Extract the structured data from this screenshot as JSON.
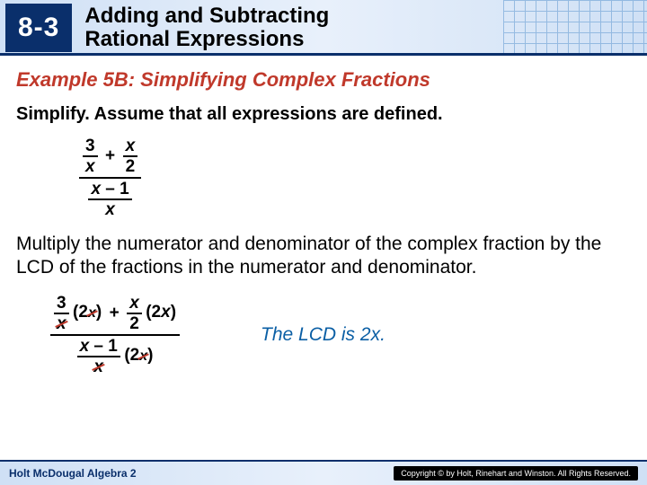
{
  "header": {
    "chapter": "8-3",
    "title_l1": "Adding and Subtracting",
    "title_l2": "Rational Expressions"
  },
  "example": {
    "title": "Example 5B: Simplifying Complex Fractions",
    "prompt": "Simplify. Assume that all expressions are defined."
  },
  "fractions": {
    "f1_num": "3",
    "f1_den": "x",
    "plus": "+",
    "f2_num": "x",
    "f2_den": "2",
    "bot_left": "x",
    "minus": "–",
    "bot_right": "1",
    "bot_den": "x"
  },
  "explain": "Multiply the numerator and denominator of the complex fraction by the LCD of the fractions in the numerator and denominator.",
  "work": {
    "mult_a": "(2",
    "mult_b": "x",
    "mult_c": ")",
    "lcd_note": "The LCD is 2x."
  },
  "footer": {
    "book": "Holt McDougal Algebra 2",
    "copyright": "Copyright © by Holt, Rinehart and Winston. All Rights Reserved."
  },
  "colors": {
    "accent_blue": "#0a2f6b",
    "accent_red": "#c0392b",
    "note_blue": "#0b5fa5"
  }
}
